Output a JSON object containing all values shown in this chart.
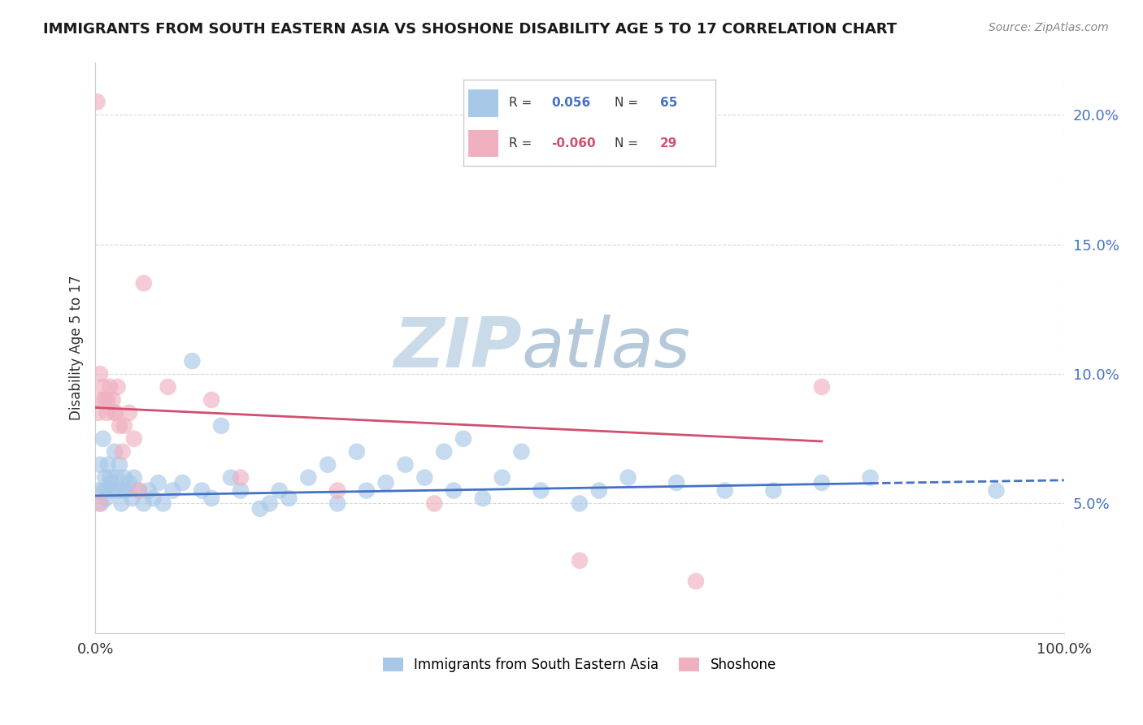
{
  "title": "IMMIGRANTS FROM SOUTH EASTERN ASIA VS SHOSHONE DISABILITY AGE 5 TO 17 CORRELATION CHART",
  "source": "Source: ZipAtlas.com",
  "ylabel": "Disability Age 5 to 17",
  "xlim": [
    0,
    100
  ],
  "ylim": [
    0,
    22
  ],
  "yticks": [
    5,
    10,
    15,
    20
  ],
  "ytick_labels": [
    "5.0%",
    "10.0%",
    "15.0%",
    "20.0%"
  ],
  "xticks": [
    0,
    100
  ],
  "xtick_labels": [
    "0.0%",
    "100.0%"
  ],
  "blue_color": "#a8c8e8",
  "pink_color": "#f0b0c0",
  "regression_blue_color": "#4472c4",
  "regression_pink_color": "#d05070",
  "watermark_zi_color": "#c8d8e8",
  "watermark_atlas_color": "#b0c8d8",
  "background_color": "#ffffff",
  "grid_color": "#d8d8d8",
  "blue_scatter_x": [
    0.3,
    0.5,
    0.6,
    0.8,
    0.9,
    1.0,
    1.1,
    1.2,
    1.3,
    1.5,
    1.6,
    1.8,
    2.0,
    2.2,
    2.3,
    2.5,
    2.7,
    2.9,
    3.0,
    3.2,
    3.5,
    3.8,
    4.0,
    4.5,
    5.0,
    5.5,
    6.0,
    6.5,
    7.0,
    8.0,
    9.0,
    10.0,
    11.0,
    12.0,
    13.0,
    14.0,
    15.0,
    17.0,
    18.0,
    19.0,
    20.0,
    22.0,
    24.0,
    25.0,
    27.0,
    28.0,
    30.0,
    32.0,
    34.0,
    36.0,
    37.0,
    38.0,
    40.0,
    42.0,
    44.0,
    46.0,
    50.0,
    52.0,
    55.0,
    60.0,
    65.0,
    70.0,
    75.0,
    80.0,
    93.0
  ],
  "blue_scatter_y": [
    5.5,
    6.5,
    5.0,
    7.5,
    5.5,
    6.0,
    5.2,
    5.5,
    6.5,
    6.0,
    5.8,
    5.5,
    7.0,
    6.0,
    5.5,
    6.5,
    5.0,
    5.5,
    6.0,
    5.5,
    5.8,
    5.2,
    6.0,
    5.5,
    5.0,
    5.5,
    5.2,
    5.8,
    5.0,
    5.5,
    5.8,
    10.5,
    5.5,
    5.2,
    8.0,
    6.0,
    5.5,
    4.8,
    5.0,
    5.5,
    5.2,
    6.0,
    6.5,
    5.0,
    7.0,
    5.5,
    5.8,
    6.5,
    6.0,
    7.0,
    5.5,
    7.5,
    5.2,
    6.0,
    7.0,
    5.5,
    5.0,
    5.5,
    6.0,
    5.8,
    5.5,
    5.5,
    5.8,
    6.0,
    5.5
  ],
  "pink_scatter_x": [
    0.2,
    0.3,
    0.5,
    0.6,
    0.8,
    1.0,
    1.2,
    1.5,
    1.8,
    2.0,
    2.3,
    2.5,
    2.8,
    3.5,
    4.0,
    5.0,
    7.5,
    15.0,
    25.0,
    35.0,
    50.0,
    62.0,
    75.0,
    12.0,
    0.4,
    1.3,
    2.1,
    3.0,
    4.5
  ],
  "pink_scatter_y": [
    20.5,
    8.5,
    10.0,
    9.0,
    9.5,
    9.0,
    8.5,
    9.5,
    9.0,
    8.5,
    9.5,
    8.0,
    7.0,
    8.5,
    7.5,
    13.5,
    9.5,
    6.0,
    5.5,
    5.0,
    2.8,
    2.0,
    9.5,
    9.0,
    5.0,
    9.0,
    8.5,
    8.0,
    5.5
  ],
  "blue_regression_x0": 0,
  "blue_regression_y0": 5.3,
  "blue_regression_x1": 100,
  "blue_regression_y1": 5.9,
  "blue_solid_end": 80,
  "pink_regression_x0": 0,
  "pink_regression_y0": 8.7,
  "pink_regression_x1": 75,
  "pink_regression_y1": 7.4
}
